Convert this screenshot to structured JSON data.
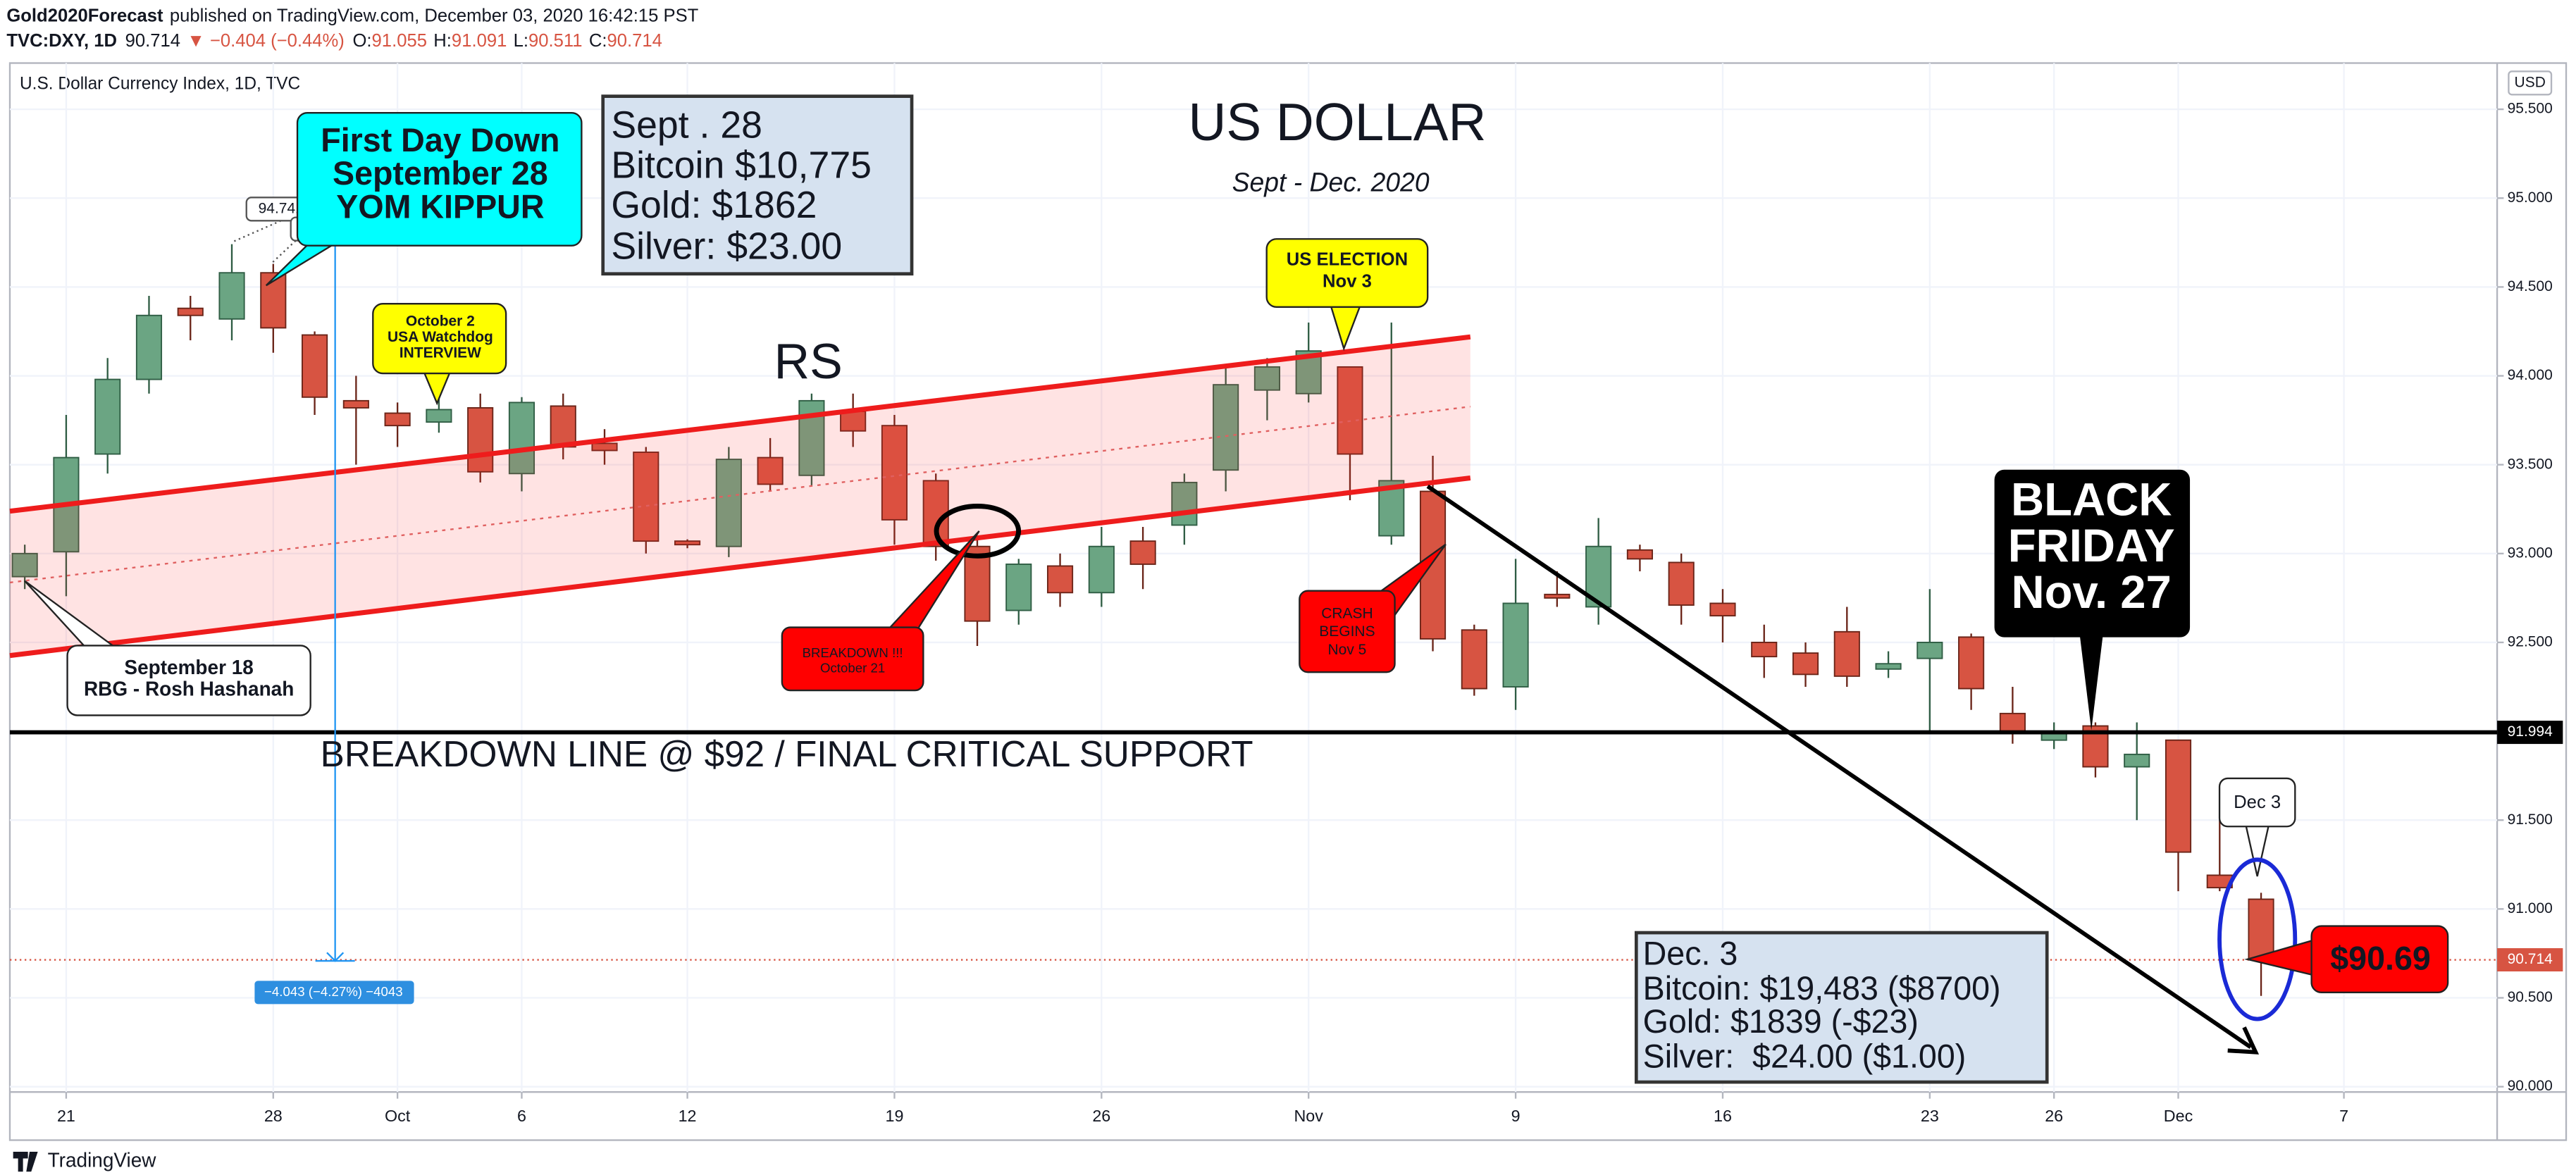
{
  "header": {
    "author": "Gold2020Forecast",
    "published": "published on TradingView.com, December 03, 2020 16:42:15 PST",
    "symbol": "TVC:DXY, 1D",
    "change": "▼ −0.404 (−0.44%)",
    "o": "O:",
    "h": "H:",
    "l": "L:",
    "c": "C:"
  },
  "branding": "TradingView",
  "chart_data": {
    "type": "candlestick",
    "title": "US DOLLAR",
    "subtitle": "Sept - Dec. 2020",
    "legend_title": "U.S. Dollar Currency Index, 1D, TVC",
    "currency": "USD",
    "up_color": "#6ba583",
    "down_color": "#d75442",
    "open": [
      92.87,
      93.01,
      93.56,
      93.98,
      94.38,
      94.32,
      94.58,
      94.23,
      93.86,
      93.79,
      93.74,
      93.82,
      93.45,
      93.83,
      93.62,
      93.57,
      93.07,
      93.04,
      93.54,
      93.44,
      93.8,
      93.72,
      93.41,
      93.04,
      92.68,
      92.93,
      92.78,
      93.07,
      93.16,
      93.47,
      93.92,
      93.9,
      94.05,
      93.1,
      93.35,
      92.57,
      92.25,
      92.77,
      92.7,
      93.02,
      92.95,
      92.72,
      92.5,
      92.44,
      92.56,
      92.35,
      92.41,
      92.53,
      92.1,
      91.95,
      92.03,
      91.8,
      91.95,
      91.19,
      91.055
    ],
    "high": [
      93.05,
      93.78,
      94.1,
      94.45,
      94.45,
      94.741,
      94.63,
      94.25,
      94.0,
      93.85,
      93.88,
      93.9,
      93.88,
      93.9,
      93.7,
      93.6,
      93.08,
      93.6,
      93.65,
      93.9,
      93.9,
      93.78,
      93.45,
      93.1,
      92.97,
      93.0,
      93.15,
      93.15,
      93.45,
      94.05,
      94.1,
      94.3,
      94.05,
      94.3,
      93.55,
      92.6,
      92.97,
      92.9,
      93.2,
      93.05,
      93.0,
      92.8,
      92.6,
      92.5,
      92.7,
      92.45,
      92.8,
      92.55,
      92.25,
      92.05,
      92.05,
      92.05,
      91.95,
      91.55,
      91.091
    ],
    "low": [
      92.8,
      92.76,
      93.45,
      93.9,
      94.2,
      94.2,
      94.13,
      93.78,
      93.5,
      93.6,
      93.68,
      93.4,
      93.35,
      93.53,
      93.5,
      93.0,
      93.03,
      92.98,
      93.35,
      93.38,
      93.6,
      93.05,
      92.96,
      92.48,
      92.6,
      92.7,
      92.7,
      92.8,
      93.05,
      93.35,
      93.75,
      93.85,
      93.3,
      93.05,
      92.45,
      92.2,
      92.12,
      92.7,
      92.6,
      92.9,
      92.6,
      92.5,
      92.3,
      92.25,
      92.25,
      92.3,
      92.0,
      92.12,
      91.93,
      91.9,
      91.74,
      91.5,
      91.1,
      91.1,
      90.511
    ],
    "close": [
      93.0,
      93.54,
      93.98,
      94.34,
      94.34,
      94.58,
      94.27,
      93.88,
      93.82,
      93.72,
      93.81,
      93.46,
      93.85,
      93.6,
      93.58,
      93.07,
      93.05,
      93.53,
      93.39,
      93.86,
      93.69,
      93.19,
      93.04,
      92.62,
      92.94,
      92.78,
      93.04,
      92.94,
      93.4,
      93.95,
      94.05,
      94.14,
      93.56,
      93.41,
      92.52,
      92.24,
      92.72,
      92.75,
      93.04,
      92.97,
      92.71,
      92.65,
      92.42,
      92.32,
      92.31,
      92.38,
      92.5,
      92.24,
      92.0,
      91.99,
      91.8,
      91.87,
      91.32,
      91.12,
      90.714
    ],
    "xlim": [
      -0.36,
      59.7
    ],
    "xticks": [
      {
        "value": 1,
        "label": "21"
      },
      {
        "value": 6,
        "label": "28"
      },
      {
        "value": 9,
        "label": "Oct"
      },
      {
        "value": 12,
        "label": "6"
      },
      {
        "value": 16,
        "label": "12"
      },
      {
        "value": 21,
        "label": "19"
      },
      {
        "value": 26,
        "label": "26"
      },
      {
        "value": 31,
        "label": "Nov"
      },
      {
        "value": 36,
        "label": "9"
      },
      {
        "value": 41,
        "label": "16"
      },
      {
        "value": 46,
        "label": "23"
      },
      {
        "value": 49,
        "label": "26"
      },
      {
        "value": 52,
        "label": "Dec"
      },
      {
        "value": 56,
        "label": "7"
      }
    ],
    "ylim": [
      89.97,
      95.76
    ],
    "yticks": [
      {
        "value": 90,
        "label": "90.000"
      },
      {
        "value": 90.5,
        "label": "90.500"
      },
      {
        "value": 91,
        "label": "91.000"
      },
      {
        "value": 91.5,
        "label": "91.500"
      },
      {
        "value": 92,
        "label": "92.000"
      },
      {
        "value": 92.5,
        "label": "92.500"
      },
      {
        "value": 93,
        "label": "93.000"
      },
      {
        "value": 93.5,
        "label": "93.500"
      },
      {
        "value": 94,
        "label": "94.000"
      },
      {
        "value": 94.5,
        "label": "94.500"
      },
      {
        "value": 95,
        "label": "95.000"
      },
      {
        "value": 95.5,
        "label": "95.500"
      }
    ],
    "support_line": 91.994,
    "measure_label": "−4.043 (−4.27%) −4043",
    "annotations": {
      "first_day": [
        "First Day Down",
        "September 28",
        "YOM KIPPUR"
      ],
      "sept28": [
        "Sept . 28",
        "Bitcoin $10,775",
        "Gold: $1862",
        "Silver: $23.00"
      ],
      "oct2": [
        "October 2",
        "USA Watchdog",
        "INTERVIEW"
      ],
      "rs": "RS",
      "election": [
        "US ELECTION",
        "Nov 3"
      ],
      "breakdown": [
        "BREAKDOWN !!!",
        "October 21"
      ],
      "crash": [
        "CRASH",
        "BEGINS",
        "Nov 5"
      ],
      "sep18": [
        "September 18",
        "RBG - Rosh Hashanah"
      ],
      "support": "BREAKDOWN LINE @ $92 / FINAL CRITICAL SUPPORT",
      "black_friday": [
        "BLACK",
        "FRIDAY",
        "Nov. 27"
      ],
      "dec3_tag": "Dec 3",
      "price_tag": "$90.69",
      "dec3": [
        "Dec. 3",
        "Bitcoin: $19,483 ($8700)",
        "Gold: $1839 (-$23)",
        "Silver:  $24.00 ($1.00)"
      ]
    }
  }
}
